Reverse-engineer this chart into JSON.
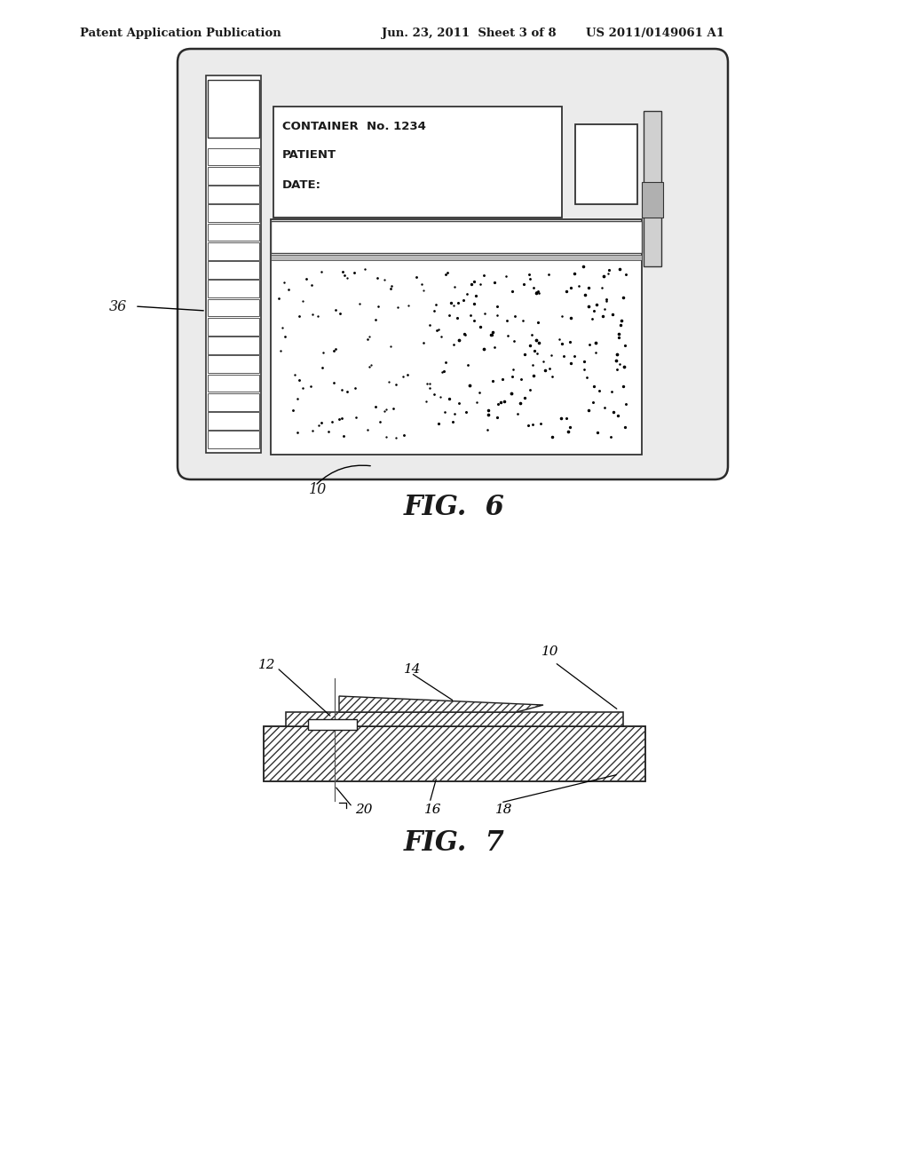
{
  "background_color": "#ffffff",
  "header_left": "Patent Application Publication",
  "header_mid": "Jun. 23, 2011  Sheet 3 of 8",
  "header_right": "US 2011/0149061 A1",
  "fig6_title": "FIG.  6",
  "fig7_title": "FIG.  7",
  "label_36": "36",
  "label_10_fig6": "10",
  "label_10_fig7": "10",
  "label_12": "12",
  "label_14": "14",
  "label_16": "16",
  "label_18": "18",
  "label_20": "20",
  "info_text": [
    "CONTAINER  No. 1234",
    "PATIENT",
    "DATE:"
  ]
}
